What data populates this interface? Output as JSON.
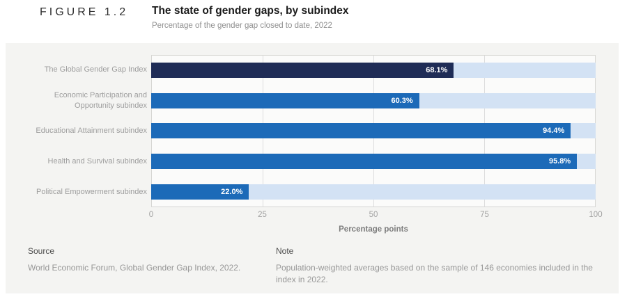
{
  "header": {
    "figure_label": "FIGURE 1.2",
    "title": "The state of gender gaps, by subindex",
    "subtitle": "Percentage of the gender gap closed to date, 2022"
  },
  "chart_data": {
    "type": "bar",
    "orientation": "horizontal",
    "title": "The state of gender gaps, by subindex",
    "subtitle": "Percentage of the gender gap closed to date, 2022",
    "categories": [
      "The Global Gender Gap Index",
      "Economic Participation and Opportunity subindex",
      "Educational Attainment subindex",
      "Health and Survival subindex",
      "Political Empowerment subindex"
    ],
    "values": [
      68.1,
      60.3,
      94.4,
      95.8,
      22.0
    ],
    "value_labels": [
      "68.1%",
      "60.3%",
      "94.4%",
      "95.8%",
      "22.0%"
    ],
    "xlabel": "Percentage points",
    "x_ticks": [
      "0",
      "25",
      "50",
      "75",
      "100"
    ],
    "xlim": [
      0,
      100
    ],
    "grid": "vertical gridlines at 25, 50, 75",
    "bar_colors": [
      "#1f2c56",
      "#1c6ab8",
      "#1c6ab8",
      "#1c6ab8",
      "#1c6ab8"
    ],
    "track_color": "#d3e2f4"
  },
  "footer": {
    "source_heading": "Source",
    "source_text": "World Economic Forum, Global Gender Gap Index, 2022.",
    "note_heading": "Note",
    "note_text": "Population-weighted averages based on the sample of 146 economies included in the index in 2022."
  }
}
